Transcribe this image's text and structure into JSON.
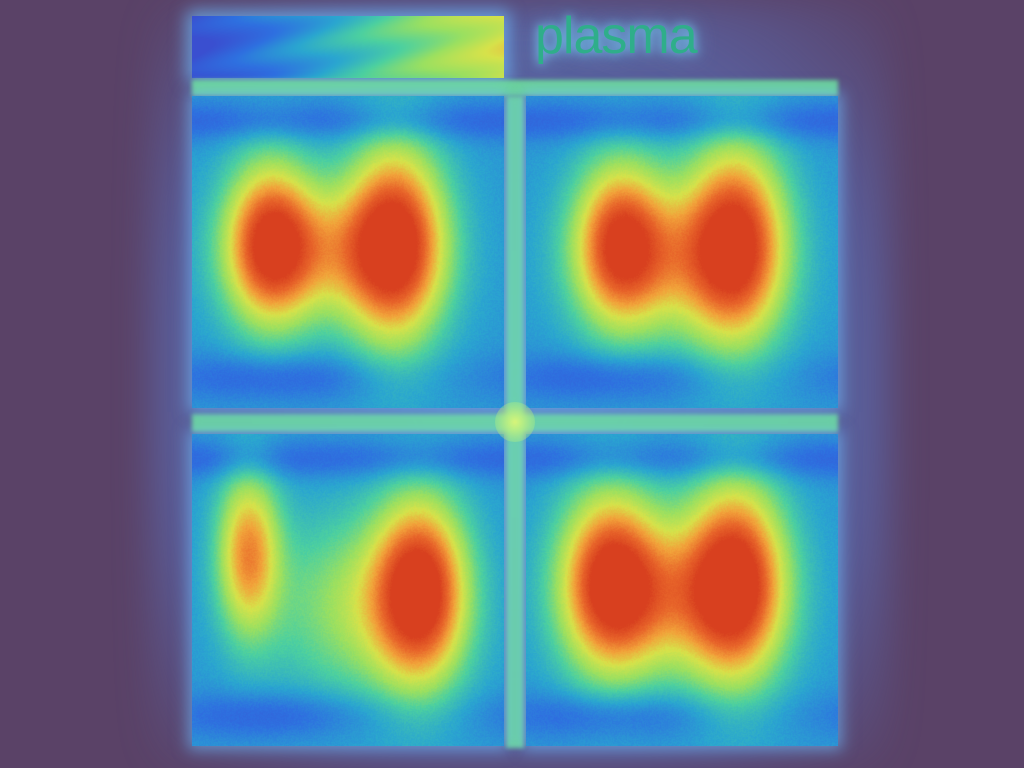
{
  "colormap": {
    "label": "plasma",
    "stops": [
      "#3a4fd0",
      "#2e70e0",
      "#2aa6d0",
      "#4cd0a0",
      "#9be060",
      "#d7e24a",
      "#f2a23a",
      "#e8652a",
      "#d8401f"
    ]
  },
  "chart_data": {
    "type": "heatmap",
    "title": "",
    "colorbar_label": "plasma",
    "grid": "2x2",
    "panels": [
      {
        "name": "top-left",
        "blobs": [
          {
            "cx": 0.25,
            "cy": 0.47,
            "sx": 0.1,
            "sy": 0.18,
            "amp": 0.92
          },
          {
            "cx": 0.65,
            "cy": 0.47,
            "sx": 0.11,
            "sy": 0.22,
            "amp": 1.0
          },
          {
            "cx": 0.45,
            "cy": 0.5,
            "sx": 0.2,
            "sy": 0.15,
            "amp": 0.45
          }
        ]
      },
      {
        "name": "top-right",
        "blobs": [
          {
            "cx": 0.3,
            "cy": 0.47,
            "sx": 0.1,
            "sy": 0.18,
            "amp": 0.85
          },
          {
            "cx": 0.67,
            "cy": 0.47,
            "sx": 0.11,
            "sy": 0.22,
            "amp": 0.95
          },
          {
            "cx": 0.48,
            "cy": 0.52,
            "sx": 0.2,
            "sy": 0.17,
            "amp": 0.45
          }
        ]
      },
      {
        "name": "bottom-left",
        "blobs": [
          {
            "cx": 0.18,
            "cy": 0.38,
            "sx": 0.07,
            "sy": 0.18,
            "amp": 0.72
          },
          {
            "cx": 0.73,
            "cy": 0.5,
            "sx": 0.1,
            "sy": 0.2,
            "amp": 1.0
          },
          {
            "cx": 0.55,
            "cy": 0.55,
            "sx": 0.2,
            "sy": 0.2,
            "amp": 0.4
          }
        ]
      },
      {
        "name": "bottom-right",
        "blobs": [
          {
            "cx": 0.27,
            "cy": 0.47,
            "sx": 0.11,
            "sy": 0.2,
            "amp": 0.95
          },
          {
            "cx": 0.67,
            "cy": 0.47,
            "sx": 0.11,
            "sy": 0.22,
            "amp": 1.0
          },
          {
            "cx": 0.47,
            "cy": 0.52,
            "sx": 0.2,
            "sy": 0.17,
            "amp": 0.5
          }
        ]
      }
    ]
  }
}
